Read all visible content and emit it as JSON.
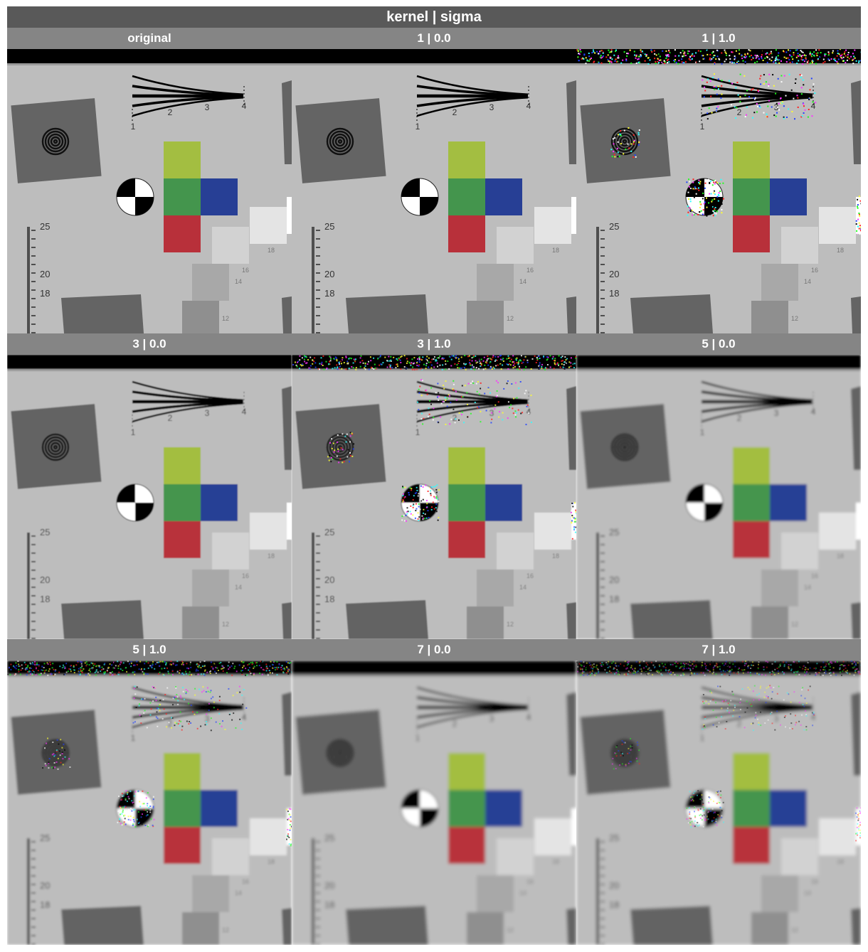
{
  "figure": {
    "title": "kernel | sigma"
  },
  "panels": [
    {
      "label": "original",
      "kernel": null,
      "sigma": null
    },
    {
      "label": "1 | 0.0",
      "kernel": 1,
      "sigma": 0.0
    },
    {
      "label": "1 | 1.0",
      "kernel": 1,
      "sigma": 1.0
    },
    {
      "label": "3 | 0.0",
      "kernel": 3,
      "sigma": 0.0
    },
    {
      "label": "3 | 1.0",
      "kernel": 3,
      "sigma": 1.0
    },
    {
      "label": "5 | 0.0",
      "kernel": 5,
      "sigma": 0.0
    },
    {
      "label": "5 | 1.0",
      "kernel": 5,
      "sigma": 1.0
    },
    {
      "label": "7 | 0.0",
      "kernel": 7,
      "sigma": 0.0
    },
    {
      "label": "7 | 1.0",
      "kernel": 7,
      "sigma": 1.0
    }
  ],
  "chart_image": {
    "tick_labels": [
      "1",
      "2",
      "3",
      "4"
    ],
    "scale_labels": [
      "25",
      "20",
      "18"
    ],
    "patch_labels": [
      "18",
      "16",
      "14",
      "12"
    ],
    "colors": {
      "gray_bg": "#bdbdbd",
      "dark_gray": "#646464",
      "yellow_green": "#a3be41",
      "green": "#44954d",
      "blue": "#273f95",
      "red": "#b8303a",
      "light_patch": "#e4e4e4",
      "mid_patch": "#d2d2d2",
      "patch_14": "#a8a8a8",
      "patch_12": "#8f8f8f",
      "black": "#000000",
      "white": "#ffffff"
    }
  }
}
